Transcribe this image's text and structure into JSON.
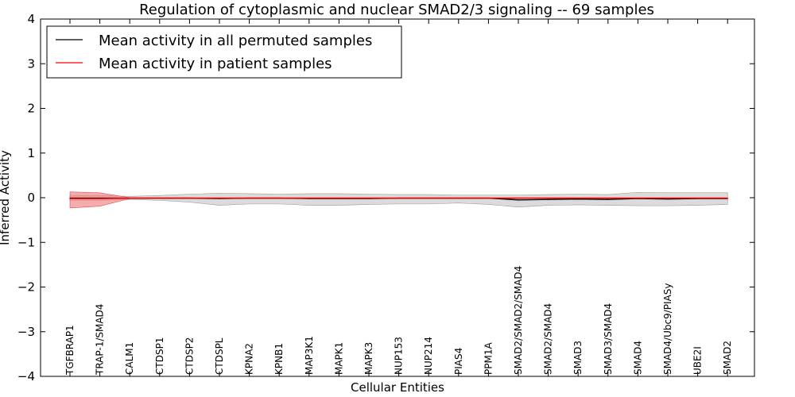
{
  "chart_data": {
    "type": "line",
    "title": "Regulation of cytoplasmic and nuclear SMAD2/3 signaling -- 69 samples",
    "xlabel": "Cellular Entities",
    "ylabel": "Inferred Activity",
    "ylim": [
      -4,
      4
    ],
    "yticks": [
      4,
      3,
      2,
      1,
      0,
      -1,
      -2,
      -3,
      -4
    ],
    "ytick_labels": [
      "4",
      "3",
      "2",
      "1",
      "0",
      "−1",
      "−2",
      "−3",
      "−4"
    ],
    "legend_position": "top-left",
    "categories": [
      "TGFBRAP1",
      "TRAP-1/SMAD4",
      "CALM1",
      "CTDSP1",
      "CTDSP2",
      "CTDSPL",
      "KPNA2",
      "KPNB1",
      "MAP3K1",
      "MAPK1",
      "MAPK3",
      "NUP153",
      "NUP214",
      "PIAS4",
      "PPM1A",
      "SMAD2/SMAD2/SMAD4",
      "SMAD2/SMAD4",
      "SMAD3",
      "SMAD3/SMAD4",
      "SMAD4",
      "SMAD4/Ubc9/PIASy",
      "UBE2I",
      "SMAD2"
    ],
    "series": [
      {
        "name": "Mean activity in all permuted samples",
        "color": "#000000",
        "band_color": "#b0b0b0",
        "values": [
          -0.01,
          -0.01,
          -0.01,
          -0.01,
          -0.01,
          -0.02,
          -0.01,
          -0.01,
          -0.02,
          -0.02,
          -0.02,
          -0.01,
          -0.01,
          -0.01,
          -0.01,
          -0.05,
          -0.04,
          -0.03,
          -0.04,
          -0.02,
          -0.03,
          -0.02,
          -0.02
        ],
        "band_upper": [
          0.05,
          0.05,
          0.03,
          0.05,
          0.08,
          0.1,
          0.09,
          0.08,
          0.09,
          0.09,
          0.08,
          0.07,
          0.07,
          0.06,
          0.06,
          0.06,
          0.07,
          0.08,
          0.07,
          0.12,
          0.11,
          0.11,
          0.11
        ],
        "band_lower": [
          -0.06,
          -0.06,
          -0.04,
          -0.06,
          -0.1,
          -0.17,
          -0.14,
          -0.14,
          -0.17,
          -0.17,
          -0.15,
          -0.14,
          -0.14,
          -0.12,
          -0.15,
          -0.21,
          -0.17,
          -0.16,
          -0.17,
          -0.18,
          -0.18,
          -0.17,
          -0.15
        ]
      },
      {
        "name": "Mean activity in patient samples",
        "color": "#ff0000",
        "band_color": "#f08080",
        "values": [
          -0.02,
          -0.02,
          -0.01,
          -0.01,
          -0.01,
          -0.01,
          -0.01,
          -0.01,
          -0.01,
          -0.01,
          -0.01,
          -0.01,
          -0.01,
          -0.01,
          -0.01,
          -0.01,
          -0.01,
          -0.01,
          -0.01,
          -0.01,
          -0.01,
          -0.01,
          -0.01
        ],
        "band_upper": [
          0.13,
          0.11,
          0.0,
          0.0,
          0.0,
          0.0,
          0.0,
          0.0,
          0.0,
          0.0,
          0.0,
          0.0,
          0.0,
          0.0,
          0.0,
          0.0,
          0.0,
          0.0,
          0.0,
          0.0,
          0.0,
          0.0,
          0.0
        ],
        "band_lower": [
          -0.23,
          -0.19,
          -0.02,
          -0.02,
          -0.02,
          -0.02,
          -0.02,
          -0.02,
          -0.02,
          -0.02,
          -0.02,
          -0.02,
          -0.02,
          -0.02,
          -0.02,
          -0.02,
          -0.02,
          -0.02,
          -0.02,
          -0.02,
          -0.02,
          -0.02,
          -0.02
        ]
      }
    ]
  }
}
